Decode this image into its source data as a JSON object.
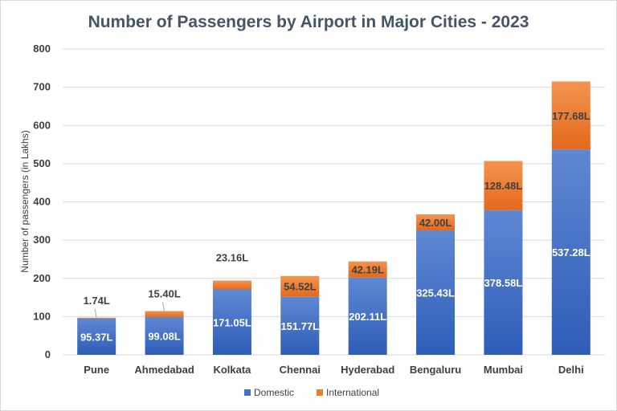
{
  "chart_data": {
    "type": "bar",
    "stacked": true,
    "title": "Number of Passengers by Airport in Major Cities - 2023",
    "xlabel": "",
    "ylabel": "Number of passengers (in Lakhs)",
    "ylim": [
      0,
      800
    ],
    "yticks": [
      "0",
      "100",
      "200",
      "300",
      "400",
      "500",
      "600",
      "700",
      "800"
    ],
    "grid": true,
    "legend": "bottom",
    "categories": [
      "Pune",
      "Ahmedabad",
      "Kolkata",
      "Chennai",
      "Hyderabad",
      "Bengaluru",
      "Mumbai",
      "Delhi"
    ],
    "series": [
      {
        "name": "Domestic",
        "color": "#4472c4",
        "values": [
          95.37,
          99.08,
          171.05,
          151.77,
          202.11,
          325.43,
          378.58,
          537.28
        ],
        "labels": [
          "95.37L",
          "99.08L",
          "171.05L",
          "151.77L",
          "202.11L",
          "325.43L",
          "378.58L",
          "537.28L"
        ]
      },
      {
        "name": "International",
        "color": "#ed7d31",
        "values": [
          1.74,
          15.4,
          23.16,
          54.52,
          42.19,
          42.0,
          128.48,
          177.68
        ],
        "labels": [
          "1.74L",
          "15.40L",
          "23.16L",
          "54.52L",
          "42.19L",
          "42.00L",
          "128.48L",
          "177.68L"
        ]
      }
    ]
  }
}
